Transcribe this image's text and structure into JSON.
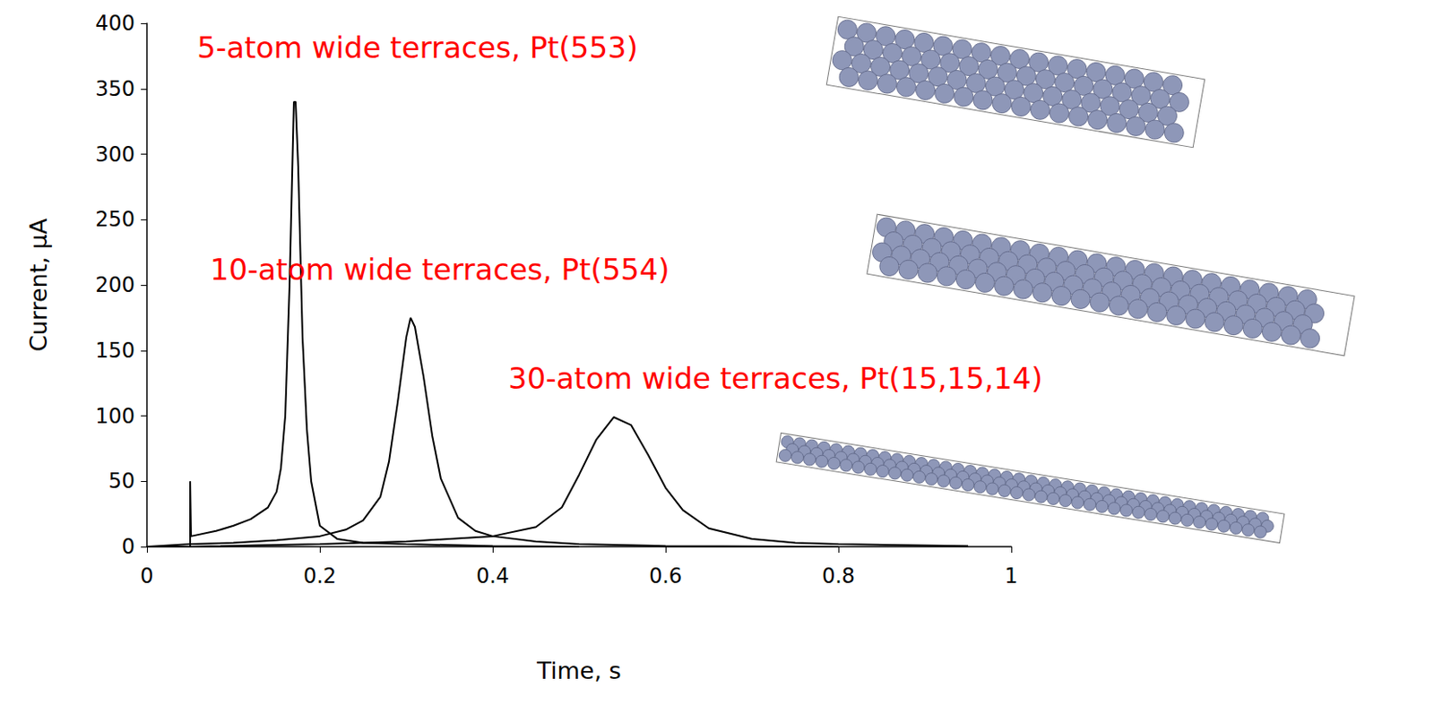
{
  "chart_data": {
    "type": "line",
    "x_label": "Time, s",
    "y_label": "Current, μA",
    "xlim": [
      0,
      1
    ],
    "xticks": [
      0,
      0.2,
      0.4,
      0.6,
      0.8,
      1
    ],
    "ylim": [
      0,
      400
    ],
    "yticks": [
      0,
      50,
      100,
      150,
      200,
      250,
      300,
      350,
      400
    ],
    "grid": false,
    "legend": false,
    "series": [
      {
        "name": "5-atom wide terraces, Pt(553)",
        "color": "#000000",
        "x": [
          0,
          0.05,
          0.05,
          0.051,
          0.08,
          0.1,
          0.12,
          0.14,
          0.15,
          0.155,
          0.16,
          0.165,
          0.17,
          0.172,
          0.175,
          0.18,
          0.185,
          0.19,
          0.2,
          0.22,
          0.25,
          0.3,
          0.4,
          0.5
        ],
        "values": [
          0,
          0,
          50,
          8,
          12,
          16,
          21,
          30,
          42,
          60,
          100,
          200,
          340,
          340,
          290,
          160,
          90,
          50,
          16,
          6,
          3,
          2,
          0.5,
          0
        ]
      },
      {
        "name": "10-atom wide terraces, Pt(554)",
        "color": "#000000",
        "x": [
          0,
          0.05,
          0.1,
          0.15,
          0.2,
          0.23,
          0.25,
          0.27,
          0.28,
          0.29,
          0.3,
          0.305,
          0.31,
          0.32,
          0.33,
          0.34,
          0.36,
          0.38,
          0.4,
          0.45,
          0.5,
          0.6,
          0.8
        ],
        "values": [
          0,
          2,
          3,
          5,
          8,
          13,
          20,
          38,
          65,
          110,
          160,
          175,
          168,
          130,
          85,
          52,
          22,
          12,
          8,
          4,
          2,
          0.5,
          0
        ]
      },
      {
        "name": "30-atom wide terraces, Pt(15,15,14)",
        "color": "#000000",
        "x": [
          0,
          0.05,
          0.2,
          0.3,
          0.4,
          0.45,
          0.48,
          0.5,
          0.52,
          0.54,
          0.56,
          0.58,
          0.6,
          0.62,
          0.65,
          0.7,
          0.75,
          0.8,
          0.95
        ],
        "values": [
          0,
          0,
          2,
          4,
          8,
          15,
          30,
          55,
          82,
          99,
          93,
          70,
          45,
          28,
          14,
          6,
          3,
          2,
          0.5
        ]
      }
    ]
  }
}
